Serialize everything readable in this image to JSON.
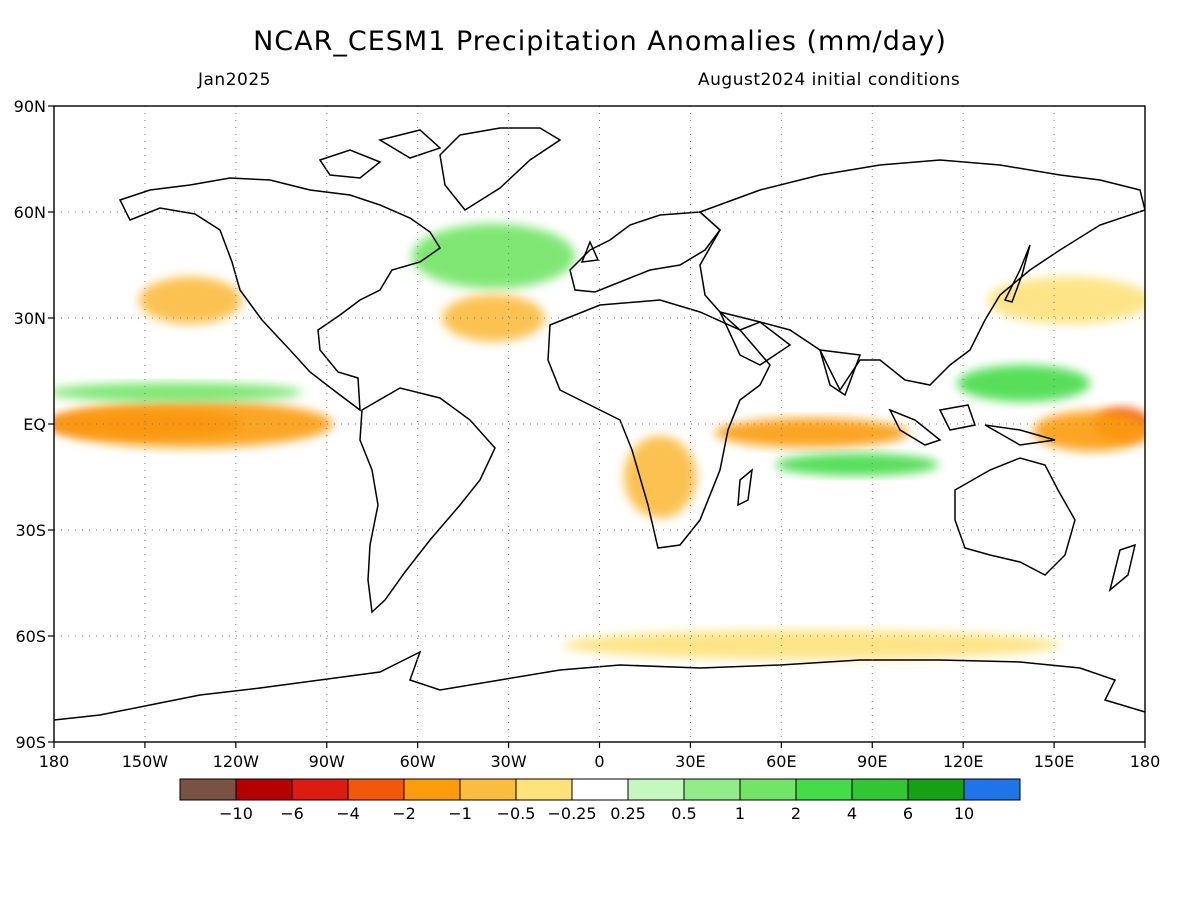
{
  "title": "NCAR_CESM1 Precipitation Anomalies (mm/day)",
  "subtitle_left": "Jan2025",
  "subtitle_right": "August2024 initial conditions",
  "map": {
    "projection": "cylindrical equidistant",
    "lon_range": [
      -180,
      180
    ],
    "lat_range": [
      -90,
      90
    ],
    "grid": "dotted, every 30 degrees",
    "lat_ticks": [
      {
        "value": 90,
        "label": "90N"
      },
      {
        "value": 60,
        "label": "60N"
      },
      {
        "value": 30,
        "label": "30N"
      },
      {
        "value": 0,
        "label": "EQ"
      },
      {
        "value": -30,
        "label": "30S"
      },
      {
        "value": -60,
        "label": "60S"
      },
      {
        "value": -90,
        "label": "90S"
      }
    ],
    "lon_ticks": [
      {
        "value": -180,
        "label": "180"
      },
      {
        "value": -150,
        "label": "150W"
      },
      {
        "value": -120,
        "label": "120W"
      },
      {
        "value": -90,
        "label": "90W"
      },
      {
        "value": -60,
        "label": "60W"
      },
      {
        "value": -30,
        "label": "30W"
      },
      {
        "value": 0,
        "label": "0"
      },
      {
        "value": 30,
        "label": "30E"
      },
      {
        "value": 60,
        "label": "60E"
      },
      {
        "value": 90,
        "label": "90E"
      },
      {
        "value": 120,
        "label": "120E"
      },
      {
        "value": 150,
        "label": "150E"
      },
      {
        "value": 180,
        "label": "180"
      }
    ]
  },
  "colorbar": {
    "colors": [
      "#7a5244",
      "#b40000",
      "#dc1c12",
      "#f2580a",
      "#fb9c0a",
      "#fbbc40",
      "#fde27a",
      "#ffffff",
      "#c4f8be",
      "#90ed8a",
      "#72e466",
      "#44dc48",
      "#32c632",
      "#16a014",
      "#1f74e8"
    ],
    "labels": [
      "−10",
      "−6",
      "−4",
      "−2",
      "−1",
      "−0.5",
      "−0.25",
      "0.25",
      "0.5",
      "1",
      "2",
      "4",
      "6",
      "10"
    ]
  },
  "chart_data": {
    "type": "heatmap",
    "title": "NCAR_CESM1 Precipitation Anomalies (mm/day)",
    "units": "mm/day",
    "valid": "Jan2025",
    "initial_conditions": "August2024",
    "x_range": [
      -180,
      180
    ],
    "y_range": [
      -90,
      90
    ],
    "color_levels": [
      -10,
      -6,
      -4,
      -2,
      -1,
      -0.5,
      -0.25,
      0.25,
      0.5,
      1,
      2,
      4,
      6,
      10
    ],
    "features": [
      {
        "lon": -180,
        "lat": 2,
        "lon2": -120,
        "lat2": -2,
        "value": -4
      },
      {
        "lon": -180,
        "lat": 5,
        "lon2": -90,
        "lat2": -5,
        "value": -2
      },
      {
        "lon": 165,
        "lat": 3,
        "lon2": 180,
        "lat2": -3,
        "value": -4
      },
      {
        "lon": 145,
        "lat": 2,
        "lon2": 180,
        "lat2": -6,
        "value": -2
      },
      {
        "lon": 40,
        "lat": 0,
        "lon2": 100,
        "lat2": -5,
        "value": -2
      },
      {
        "lon": 60,
        "lat": -10,
        "lon2": 110,
        "lat2": -13,
        "value": 2
      },
      {
        "lon": 120,
        "lat": 15,
        "lon2": 160,
        "lat2": 8,
        "value": 2
      },
      {
        "lon": -180,
        "lat": 10,
        "lon2": -100,
        "lat2": 8,
        "value": 1
      },
      {
        "lon": -60,
        "lat": 55,
        "lon2": -10,
        "lat2": 40,
        "value": 1
      },
      {
        "lon": -150,
        "lat": 40,
        "lon2": -120,
        "lat2": 30,
        "value": -1
      },
      {
        "lon": -50,
        "lat": 35,
        "lon2": -20,
        "lat2": 25,
        "value": -1
      },
      {
        "lon": 10,
        "lat": -5,
        "lon2": 30,
        "lat2": -25,
        "value": -1
      },
      {
        "lon": -10,
        "lat": -60,
        "lon2": 150,
        "lat2": -65,
        "value": -0.5
      },
      {
        "lon": 130,
        "lat": 40,
        "lon2": 180,
        "lat2": 30,
        "value": -0.5
      }
    ]
  }
}
